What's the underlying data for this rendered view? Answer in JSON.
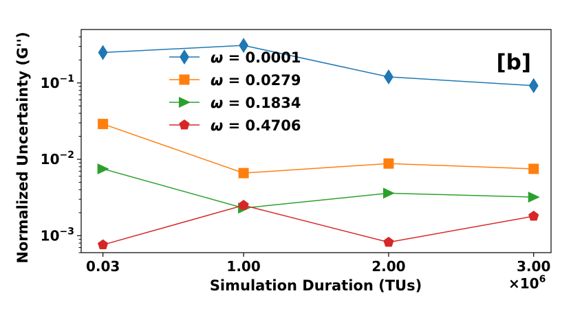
{
  "chart_data": {
    "type": "line",
    "title": "",
    "xlabel": "Simulation Duration (TUs)",
    "ylabel": "Normalized Uncertainty (G'')",
    "x_scale_note": "×10",
    "x_scale_exp": "6",
    "annotation": "[b]",
    "yscale": "log",
    "ylim": [
      0.0006,
      0.5
    ],
    "xlim": [
      -0.12,
      3.12
    ],
    "x_ticks": [
      {
        "value": 0.03,
        "label": "0.03"
      },
      {
        "value": 1.0,
        "label": "1.00"
      },
      {
        "value": 2.0,
        "label": "2.00"
      },
      {
        "value": 3.0,
        "label": "3.00"
      }
    ],
    "y_ticks": [
      {
        "value": 0.001,
        "base": "10",
        "exp": "−3"
      },
      {
        "value": 0.01,
        "base": "10",
        "exp": "−2"
      },
      {
        "value": 0.1,
        "base": "10",
        "exp": "−1"
      }
    ],
    "grid": false,
    "legend_position": "upper-left",
    "x": [
      0.03,
      1.0,
      2.0,
      3.0
    ],
    "series": [
      {
        "name": "ω = 0.0001",
        "prefix": "ω",
        "value_text": " = 0.0001",
        "color": "#1f77b4",
        "marker": "diamond",
        "values": [
          0.25,
          0.31,
          0.12,
          0.092
        ]
      },
      {
        "name": "ω = 0.0279",
        "prefix": "ω",
        "value_text": " = 0.0279",
        "color": "#ff7f0e",
        "marker": "square",
        "values": [
          0.029,
          0.0066,
          0.0088,
          0.0075
        ]
      },
      {
        "name": "ω = 0.1834",
        "prefix": "ω",
        "value_text": " = 0.1834",
        "color": "#2ca02c",
        "marker": "triangle-right",
        "values": [
          0.0075,
          0.0023,
          0.0036,
          0.0032
        ]
      },
      {
        "name": "ω = 0.4706",
        "prefix": "ω",
        "value_text": " = 0.4706",
        "color": "#d62728",
        "marker": "pentagon",
        "values": [
          0.00076,
          0.0025,
          0.00082,
          0.0018
        ]
      }
    ]
  }
}
